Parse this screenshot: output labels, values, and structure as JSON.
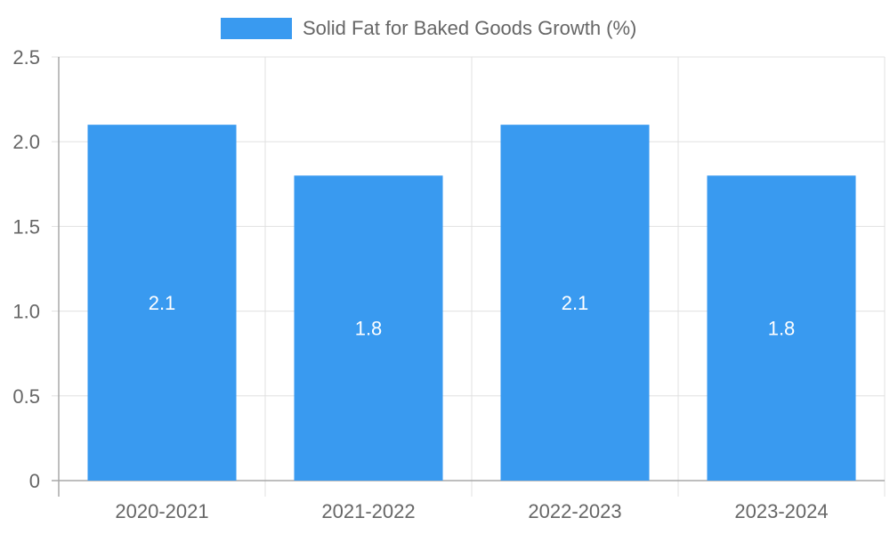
{
  "chart_data": {
    "type": "bar",
    "categories": [
      "2020-2021",
      "2021-2022",
      "2022-2023",
      "2023-2024"
    ],
    "series": [
      {
        "name": "Solid Fat for Baked Goods Growth (%)",
        "values": [
          2.1,
          1.8,
          2.1,
          1.8
        ],
        "color": "#399AF0"
      }
    ],
    "data_labels": [
      "2.1",
      "1.8",
      "2.1",
      "1.8"
    ],
    "y_ticks": [
      "0",
      "0.5",
      "1.0",
      "1.5",
      "2.0",
      "2.5"
    ],
    "ylim": [
      0,
      2.5
    ],
    "title": "",
    "xlabel": "",
    "ylabel": "",
    "grid": true,
    "legend_position": "top-center"
  },
  "colors": {
    "bar": "#399AF0",
    "grid": "#E0E0E0",
    "axis": "#A8A8A8",
    "tick_text": "#666666",
    "legend_text": "#666666",
    "data_label_text": "#FFFFFF"
  }
}
